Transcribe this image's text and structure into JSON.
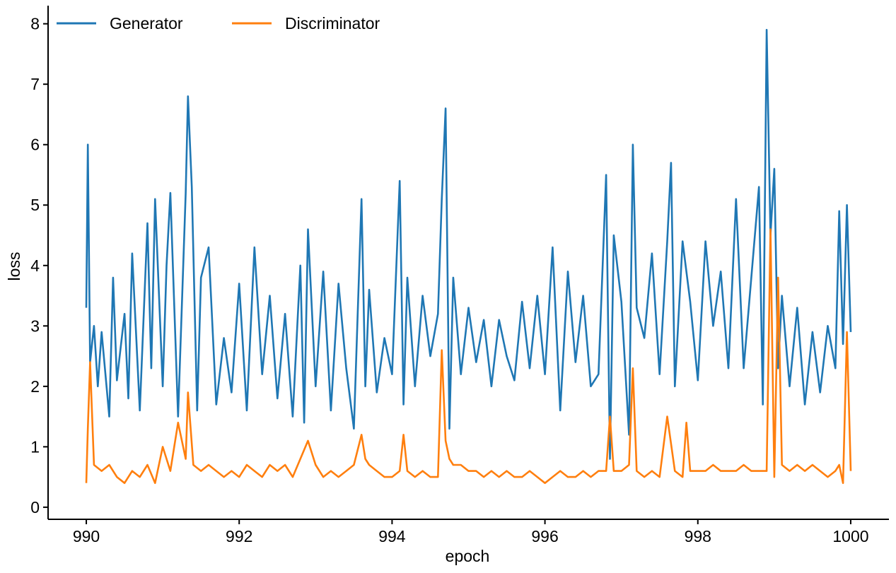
{
  "chart_data": {
    "type": "line",
    "xlabel": "epoch",
    "ylabel": "loss",
    "xlim": [
      989.5,
      1000.5
    ],
    "ylim": [
      -0.2,
      8.3
    ],
    "xticks": [
      990,
      992,
      994,
      996,
      998,
      1000
    ],
    "yticks": [
      0,
      1,
      2,
      3,
      4,
      5,
      6,
      7,
      8
    ],
    "grid": false,
    "legend": {
      "placement": "top-left",
      "columns": 2
    },
    "series": [
      {
        "name": "Generator",
        "color": "#1f77b4",
        "x": [
          990.0,
          990.02,
          990.05,
          990.1,
          990.15,
          990.2,
          990.3,
          990.35,
          990.4,
          990.5,
          990.55,
          990.6,
          990.7,
          990.8,
          990.85,
          990.9,
          991.0,
          991.05,
          991.1,
          991.2,
          991.3,
          991.33,
          991.38,
          991.45,
          991.5,
          991.6,
          991.7,
          991.8,
          991.9,
          992.0,
          992.1,
          992.2,
          992.3,
          992.4,
          992.5,
          992.6,
          992.7,
          992.8,
          992.85,
          992.9,
          993.0,
          993.1,
          993.2,
          993.3,
          993.4,
          993.5,
          993.6,
          993.65,
          993.7,
          993.8,
          993.9,
          994.0,
          994.1,
          994.15,
          994.2,
          994.3,
          994.4,
          994.5,
          994.6,
          994.65,
          994.7,
          994.75,
          994.8,
          994.9,
          995.0,
          995.1,
          995.2,
          995.3,
          995.4,
          995.5,
          995.6,
          995.7,
          995.8,
          995.9,
          996.0,
          996.1,
          996.2,
          996.3,
          996.4,
          996.5,
          996.6,
          996.7,
          996.8,
          996.85,
          996.9,
          997.0,
          997.1,
          997.15,
          997.2,
          997.3,
          997.4,
          997.5,
          997.6,
          997.65,
          997.7,
          997.8,
          997.9,
          998.0,
          998.1,
          998.2,
          998.3,
          998.4,
          998.5,
          998.6,
          998.7,
          998.8,
          998.85,
          998.9,
          998.95,
          999.0,
          999.05,
          999.1,
          999.2,
          999.3,
          999.4,
          999.5,
          999.6,
          999.7,
          999.8,
          999.85,
          999.9,
          999.95,
          1000.0
        ],
        "y": [
          3.3,
          6.0,
          2.4,
          3.0,
          2.0,
          2.9,
          1.5,
          3.8,
          2.1,
          3.2,
          1.8,
          4.2,
          1.6,
          4.7,
          2.3,
          5.1,
          2.0,
          4.0,
          5.2,
          1.5,
          5.2,
          6.8,
          5.3,
          1.6,
          3.8,
          4.3,
          1.7,
          2.8,
          1.9,
          3.7,
          1.6,
          4.3,
          2.2,
          3.5,
          1.8,
          3.2,
          1.5,
          4.0,
          1.4,
          4.6,
          2.0,
          3.9,
          1.6,
          3.7,
          2.3,
          1.3,
          5.1,
          2.0,
          3.6,
          1.9,
          2.8,
          2.2,
          5.4,
          1.7,
          3.8,
          2.0,
          3.5,
          2.5,
          3.2,
          5.1,
          6.6,
          1.3,
          3.8,
          2.2,
          3.3,
          2.4,
          3.1,
          2.0,
          3.1,
          2.5,
          2.1,
          3.4,
          2.3,
          3.5,
          2.2,
          4.3,
          1.6,
          3.9,
          2.4,
          3.5,
          2.0,
          2.2,
          5.5,
          0.8,
          4.5,
          3.4,
          1.2,
          6.0,
          3.3,
          2.8,
          4.2,
          2.2,
          4.4,
          5.7,
          2.0,
          4.4,
          3.4,
          2.1,
          4.4,
          3.0,
          3.9,
          2.3,
          5.1,
          2.3,
          3.8,
          5.3,
          1.7,
          7.9,
          4.5,
          5.6,
          2.3,
          3.5,
          2.0,
          3.3,
          1.7,
          2.9,
          1.9,
          3.0,
          2.3,
          4.9,
          2.7,
          5.0,
          2.9
        ]
      },
      {
        "name": "Discriminator",
        "color": "#ff7f0e",
        "x": [
          990.0,
          990.02,
          990.05,
          990.1,
          990.2,
          990.3,
          990.4,
          990.5,
          990.6,
          990.7,
          990.8,
          990.9,
          991.0,
          991.1,
          991.2,
          991.3,
          991.33,
          991.4,
          991.5,
          991.6,
          991.7,
          991.8,
          991.9,
          992.0,
          992.1,
          992.2,
          992.3,
          992.4,
          992.5,
          992.6,
          992.7,
          992.8,
          992.9,
          993.0,
          993.1,
          993.2,
          993.3,
          993.4,
          993.5,
          993.6,
          993.65,
          993.7,
          993.8,
          993.9,
          994.0,
          994.1,
          994.15,
          994.2,
          994.3,
          994.4,
          994.5,
          994.6,
          994.65,
          994.7,
          994.75,
          994.8,
          994.9,
          995.0,
          995.1,
          995.2,
          995.3,
          995.4,
          995.5,
          995.6,
          995.7,
          995.8,
          995.9,
          996.0,
          996.1,
          996.2,
          996.3,
          996.4,
          996.5,
          996.6,
          996.7,
          996.8,
          996.85,
          996.9,
          997.0,
          997.1,
          997.15,
          997.2,
          997.3,
          997.4,
          997.5,
          997.6,
          997.7,
          997.8,
          997.85,
          997.9,
          998.0,
          998.1,
          998.2,
          998.3,
          998.4,
          998.5,
          998.6,
          998.7,
          998.8,
          998.9,
          998.95,
          999.0,
          999.05,
          999.1,
          999.2,
          999.3,
          999.4,
          999.5,
          999.6,
          999.7,
          999.8,
          999.85,
          999.9,
          999.95,
          1000.0
        ],
        "y": [
          0.4,
          1.3,
          2.4,
          0.7,
          0.6,
          0.7,
          0.5,
          0.4,
          0.6,
          0.5,
          0.7,
          0.4,
          1.0,
          0.6,
          1.4,
          0.8,
          1.9,
          0.7,
          0.6,
          0.7,
          0.6,
          0.5,
          0.6,
          0.5,
          0.7,
          0.6,
          0.5,
          0.7,
          0.6,
          0.7,
          0.5,
          0.8,
          1.1,
          0.7,
          0.5,
          0.6,
          0.5,
          0.6,
          0.7,
          1.2,
          0.8,
          0.7,
          0.6,
          0.5,
          0.5,
          0.6,
          1.2,
          0.6,
          0.5,
          0.6,
          0.5,
          0.5,
          2.6,
          1.1,
          0.8,
          0.7,
          0.7,
          0.6,
          0.6,
          0.5,
          0.6,
          0.5,
          0.6,
          0.5,
          0.5,
          0.6,
          0.5,
          0.4,
          0.5,
          0.6,
          0.5,
          0.5,
          0.6,
          0.5,
          0.6,
          0.6,
          1.5,
          0.6,
          0.6,
          0.7,
          2.3,
          0.6,
          0.5,
          0.6,
          0.5,
          1.5,
          0.6,
          0.5,
          1.4,
          0.6,
          0.6,
          0.6,
          0.7,
          0.6,
          0.6,
          0.6,
          0.7,
          0.6,
          0.6,
          0.6,
          4.6,
          0.5,
          3.8,
          0.7,
          0.6,
          0.7,
          0.6,
          0.7,
          0.6,
          0.5,
          0.6,
          0.7,
          0.4,
          2.9,
          0.6
        ]
      }
    ]
  }
}
